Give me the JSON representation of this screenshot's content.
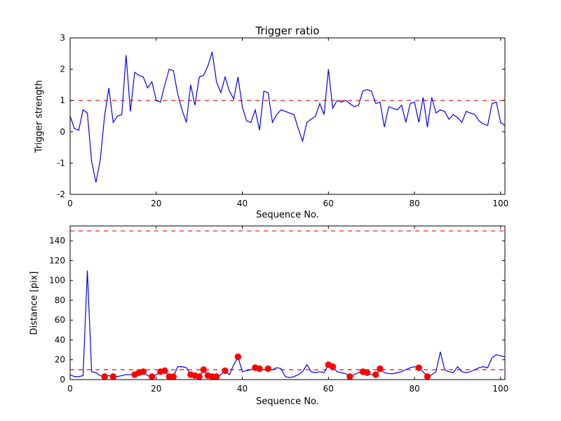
{
  "figure": {
    "background": "#ffffff"
  },
  "chart_data": [
    {
      "type": "line",
      "title": "Trigger ratio",
      "xlabel": "Sequence No.",
      "ylabel": "Trigger strength",
      "xlim": [
        0,
        101
      ],
      "ylim": [
        -2,
        3
      ],
      "xticks": [
        0,
        20,
        40,
        60,
        80,
        100
      ],
      "yticks": [
        -2,
        -1,
        0,
        1,
        2,
        3
      ],
      "grid": false,
      "legend": "none",
      "line_color": "#0000ff",
      "threshold_color": "#ff0000",
      "thresholds": [
        1.0
      ],
      "x_start": 0,
      "x_step": 1,
      "y": [
        0.5,
        0.1,
        0.05,
        0.7,
        0.6,
        -0.95,
        -1.62,
        -0.9,
        0.5,
        1.4,
        0.3,
        0.5,
        0.55,
        2.45,
        0.65,
        1.9,
        1.8,
        1.75,
        1.4,
        1.6,
        1.0,
        0.95,
        1.5,
        2.0,
        1.95,
        1.2,
        0.7,
        0.3,
        1.5,
        0.85,
        1.75,
        1.8,
        2.1,
        2.55,
        1.6,
        1.25,
        1.75,
        1.3,
        1.05,
        1.75,
        0.8,
        0.35,
        0.3,
        0.7,
        0.05,
        1.3,
        1.25,
        0.3,
        0.55,
        0.7,
        0.65,
        0.6,
        0.55,
        0.1,
        -0.3,
        0.3,
        0.4,
        0.5,
        0.9,
        0.55,
        2.0,
        0.75,
        1.0,
        0.95,
        1.0,
        0.9,
        0.8,
        0.85,
        1.3,
        1.35,
        1.3,
        0.9,
        0.95,
        0.15,
        0.8,
        0.75,
        0.7,
        0.85,
        0.3,
        0.9,
        0.95,
        0.3,
        1.1,
        0.15,
        1.1,
        0.6,
        0.7,
        0.65,
        0.4,
        0.55,
        0.45,
        0.3,
        0.65,
        0.6,
        0.55,
        0.35,
        0.25,
        0.2,
        0.9,
        0.95,
        0.3,
        0.2
      ]
    },
    {
      "type": "line",
      "title": "",
      "xlabel": "Sequence No.",
      "ylabel": "Distance [pix]",
      "xlim": [
        0,
        101
      ],
      "ylim": [
        0,
        155
      ],
      "xticks": [
        0,
        20,
        40,
        60,
        80,
        100
      ],
      "yticks": [
        0,
        20,
        40,
        60,
        80,
        100,
        120,
        140
      ],
      "grid": false,
      "legend": "none",
      "line_color": "#0000ff",
      "threshold_color": "#ff0000",
      "marker_color": "#ff0000",
      "thresholds": [
        150,
        10
      ],
      "x_start": 0,
      "x_step": 1,
      "y": [
        5,
        3,
        3,
        4,
        110,
        8,
        7,
        4,
        3,
        4,
        3,
        3,
        4,
        5,
        5,
        5,
        7,
        8,
        4,
        3,
        5,
        8,
        9,
        3,
        3,
        13,
        13,
        12,
        5,
        4,
        3,
        10,
        4,
        3,
        3,
        5,
        9,
        5,
        15,
        23,
        8,
        9,
        10,
        12,
        11,
        10,
        11,
        10,
        12,
        11,
        3,
        2,
        3,
        5,
        8,
        15,
        8,
        7,
        8,
        7,
        15,
        13,
        8,
        7,
        6,
        3,
        5,
        7,
        8,
        7,
        5,
        5,
        11,
        7,
        6,
        6,
        7,
        8,
        10,
        12,
        13,
        12,
        8,
        3,
        5,
        8,
        28,
        10,
        8,
        7,
        13,
        8,
        7,
        8,
        10,
        12,
        13,
        12,
        22,
        25,
        24,
        23
      ],
      "markers": [
        [
          8,
          3
        ],
        [
          10,
          3
        ],
        [
          15,
          5
        ],
        [
          16,
          7
        ],
        [
          17,
          8
        ],
        [
          19,
          3
        ],
        [
          21,
          8
        ],
        [
          22,
          9
        ],
        [
          23,
          3
        ],
        [
          24,
          3
        ],
        [
          28,
          5
        ],
        [
          29,
          4
        ],
        [
          30,
          3
        ],
        [
          31,
          10
        ],
        [
          32,
          4
        ],
        [
          33,
          3
        ],
        [
          34,
          3
        ],
        [
          36,
          9
        ],
        [
          39,
          23
        ],
        [
          43,
          12
        ],
        [
          44,
          11
        ],
        [
          46,
          11
        ],
        [
          60,
          15
        ],
        [
          61,
          13
        ],
        [
          65,
          3
        ],
        [
          68,
          8
        ],
        [
          69,
          7
        ],
        [
          71,
          5
        ],
        [
          72,
          11
        ],
        [
          81,
          12
        ],
        [
          83,
          3
        ]
      ]
    }
  ]
}
